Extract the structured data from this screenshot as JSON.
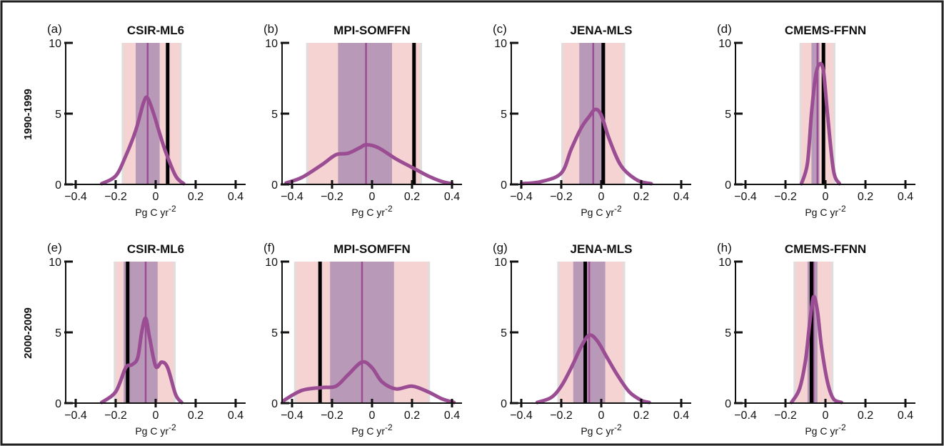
{
  "row_labels": [
    "1990-1999",
    "2000-2009"
  ],
  "colors": {
    "curve": "#9b4d93",
    "mean_line": "#9b4d93",
    "inner_band": "#b999b8",
    "outer_band_pink": "#f5d3d3",
    "outer_band_grey": "#dedede",
    "obs_line": "#000000"
  },
  "chart_data": [
    {
      "type": "area",
      "letter": "(a)",
      "title": "CSIR-ML6",
      "xlabel": "Pg C yr",
      "xlabel_sup": "-2",
      "xlim": [
        -0.45,
        0.45
      ],
      "ylim": [
        0,
        10
      ],
      "xticks": [
        "-0.4",
        "-0.2",
        "0",
        "0.2",
        "0.4"
      ],
      "xtick_values": [
        -0.4,
        -0.2,
        0,
        0.2,
        0.4
      ],
      "yticks": [
        "0",
        "5",
        "10"
      ],
      "ytick_values": [
        0,
        5,
        10
      ],
      "outer_band": [
        -0.17,
        0.13
      ],
      "pink_band": [
        -0.16,
        0.12
      ],
      "inner_band": [
        -0.1,
        0.02
      ],
      "mean": -0.04,
      "observed": 0.06,
      "density": {
        "x": [
          -0.27,
          -0.2,
          -0.15,
          -0.1,
          -0.06,
          -0.04,
          -0.01,
          0.02,
          0.05,
          0.1,
          0.14
        ],
        "y": [
          0.05,
          0.6,
          2.0,
          3.8,
          5.8,
          6.1,
          5.0,
          3.6,
          2.3,
          0.6,
          0.05
        ]
      }
    },
    {
      "type": "area",
      "letter": "(b)",
      "title": "MPI-SOMFFN",
      "xlabel": "Pg C yr",
      "xlabel_sup": "-2",
      "xlim": [
        -0.45,
        0.45
      ],
      "ylim": [
        0,
        10
      ],
      "xticks": [
        "-0.4",
        "-0.2",
        "0",
        "0.2",
        "0.4"
      ],
      "xtick_values": [
        -0.4,
        -0.2,
        0,
        0.2,
        0.4
      ],
      "yticks": [
        "0",
        "5",
        "10"
      ],
      "ytick_values": [
        0,
        5,
        10
      ],
      "outer_band": [
        -0.33,
        0.25
      ],
      "pink_band": [
        -0.32,
        0.24
      ],
      "inner_band": [
        -0.17,
        0.1
      ],
      "mean": -0.03,
      "observed": 0.21,
      "density": {
        "x": [
          -0.43,
          -0.35,
          -0.25,
          -0.18,
          -0.12,
          -0.06,
          -0.03,
          0.03,
          0.12,
          0.2,
          0.28,
          0.35,
          0.4
        ],
        "y": [
          0.1,
          0.5,
          1.4,
          2.1,
          2.2,
          2.6,
          2.8,
          2.6,
          1.8,
          1.2,
          0.6,
          0.2,
          0.05
        ]
      }
    },
    {
      "type": "area",
      "letter": "(c)",
      "title": "JENA-MLS",
      "xlabel": "Pg C yr",
      "xlabel_sup": "-2",
      "xlim": [
        -0.45,
        0.45
      ],
      "ylim": [
        0,
        10
      ],
      "xticks": [
        "-0.4",
        "-0.2",
        "0",
        "0.2",
        "0.4"
      ],
      "xtick_values": [
        -0.4,
        -0.2,
        0,
        0.2,
        0.4
      ],
      "yticks": [
        "0",
        "5",
        "10"
      ],
      "ytick_values": [
        0,
        5,
        10
      ],
      "outer_band": [
        -0.2,
        0.12
      ],
      "pink_band": [
        -0.19,
        0.11
      ],
      "inner_band": [
        -0.11,
        0.02
      ],
      "mean": -0.04,
      "observed": 0.01,
      "density": {
        "x": [
          -0.4,
          -0.3,
          -0.2,
          -0.15,
          -0.1,
          -0.06,
          -0.03,
          0.0,
          0.04,
          0.1,
          0.18,
          0.25
        ],
        "y": [
          0.05,
          0.2,
          0.8,
          2.5,
          4.0,
          4.8,
          5.3,
          4.9,
          3.2,
          1.3,
          0.3,
          0.05
        ]
      }
    },
    {
      "type": "area",
      "letter": "(d)",
      "title": "CMEMS-FFNN",
      "xlabel": "Pg C yr",
      "xlabel_sup": "-2",
      "xlim": [
        -0.45,
        0.45
      ],
      "ylim": [
        0,
        10
      ],
      "xticks": [
        "-0.4",
        "-0.2",
        "0",
        "0.2",
        "0.4"
      ],
      "xtick_values": [
        -0.4,
        -0.2,
        0,
        0.2,
        0.4
      ],
      "yticks": [
        "0",
        "5",
        "10"
      ],
      "ytick_values": [
        0,
        5,
        10
      ],
      "outer_band": [
        -0.13,
        0.05
      ],
      "pink_band": [
        -0.12,
        0.04
      ],
      "inner_band": [
        -0.07,
        -0.03
      ],
      "mean": -0.04,
      "observed": -0.01,
      "density": {
        "x": [
          -0.12,
          -0.09,
          -0.07,
          -0.05,
          -0.03,
          -0.01,
          0.01,
          0.04,
          0.07
        ],
        "y": [
          0.05,
          1.5,
          5.0,
          7.6,
          8.5,
          8.0,
          5.0,
          1.0,
          0.05
        ]
      }
    },
    {
      "type": "area",
      "letter": "(e)",
      "title": "CSIR-ML6",
      "xlabel": "Pg C yr",
      "xlabel_sup": "-2",
      "xlim": [
        -0.45,
        0.45
      ],
      "ylim": [
        0,
        10
      ],
      "xticks": [
        "-0.4",
        "-0.2",
        "0",
        "0.2",
        "0.4"
      ],
      "xtick_values": [
        -0.4,
        -0.2,
        0,
        0.2,
        0.4
      ],
      "yticks": [
        "0",
        "5",
        "10"
      ],
      "ytick_values": [
        0,
        5,
        10
      ],
      "outer_band": [
        -0.21,
        0.1
      ],
      "pink_band": [
        -0.2,
        0.09
      ],
      "inner_band": [
        -0.16,
        0.01
      ],
      "mean": -0.05,
      "observed": -0.14,
      "density": {
        "x": [
          -0.27,
          -0.2,
          -0.15,
          -0.12,
          -0.09,
          -0.07,
          -0.05,
          -0.03,
          0.0,
          0.03,
          0.06,
          0.1,
          0.13
        ],
        "y": [
          0.05,
          0.8,
          2.5,
          2.7,
          3.2,
          5.0,
          6.0,
          4.6,
          2.6,
          2.9,
          2.5,
          0.6,
          0.05
        ]
      }
    },
    {
      "type": "area",
      "letter": "(f)",
      "title": "MPI-SOMFFN",
      "xlabel": "Pg C yr",
      "xlabel_sup": "-2",
      "xlim": [
        -0.45,
        0.45
      ],
      "ylim": [
        0,
        10
      ],
      "xticks": [
        "-0.4",
        "-0.2",
        "0",
        "0.2",
        "0.4"
      ],
      "xtick_values": [
        -0.4,
        -0.2,
        0,
        0.2,
        0.4
      ],
      "yticks": [
        "0",
        "5",
        "10"
      ],
      "ytick_values": [
        0,
        5,
        10
      ],
      "outer_band": [
        -0.39,
        0.29
      ],
      "pink_band": [
        -0.38,
        0.28
      ],
      "inner_band": [
        -0.21,
        0.11
      ],
      "mean": -0.05,
      "observed": -0.26,
      "density": {
        "x": [
          -0.44,
          -0.35,
          -0.25,
          -0.18,
          -0.12,
          -0.05,
          0.0,
          0.05,
          0.12,
          0.2,
          0.28,
          0.35,
          0.41
        ],
        "y": [
          0.2,
          0.9,
          1.1,
          1.2,
          2.0,
          2.9,
          2.5,
          1.5,
          1.0,
          1.2,
          0.8,
          0.3,
          0.05
        ]
      }
    },
    {
      "type": "area",
      "letter": "(g)",
      "title": "JENA-MLS",
      "xlabel": "Pg C yr",
      "xlabel_sup": "-2",
      "xlim": [
        -0.45,
        0.45
      ],
      "ylim": [
        0,
        10
      ],
      "xticks": [
        "-0.4",
        "-0.2",
        "0",
        "0.2",
        "0.4"
      ],
      "xtick_values": [
        -0.4,
        -0.2,
        0,
        0.2,
        0.4
      ],
      "yticks": [
        "0",
        "5",
        "10"
      ],
      "ytick_values": [
        0,
        5,
        10
      ],
      "outer_band": [
        -0.22,
        0.12
      ],
      "pink_band": [
        -0.21,
        0.11
      ],
      "inner_band": [
        -0.14,
        0.02
      ],
      "mean": -0.06,
      "observed": -0.08,
      "density": {
        "x": [
          -0.32,
          -0.25,
          -0.2,
          -0.15,
          -0.1,
          -0.06,
          -0.02,
          0.03,
          0.08,
          0.14,
          0.2,
          0.24
        ],
        "y": [
          0.05,
          0.4,
          1.2,
          2.5,
          4.0,
          4.8,
          4.4,
          3.2,
          2.0,
          0.8,
          0.2,
          0.05
        ]
      }
    },
    {
      "type": "area",
      "letter": "(h)",
      "title": "CMEMS-FFNN",
      "xlabel": "Pg C yr",
      "xlabel_sup": "-2",
      "xlim": [
        -0.45,
        0.45
      ],
      "ylim": [
        0,
        10
      ],
      "xticks": [
        "-0.4",
        "-0.2",
        "0",
        "0.2",
        "0.4"
      ],
      "xtick_values": [
        -0.4,
        -0.2,
        0,
        0.2,
        0.4
      ],
      "yticks": [
        "0",
        "5",
        "10"
      ],
      "ytick_values": [
        0,
        5,
        10
      ],
      "outer_band": [
        -0.16,
        0.04
      ],
      "pink_band": [
        -0.15,
        0.03
      ],
      "inner_band": [
        -0.09,
        -0.04
      ],
      "mean": -0.06,
      "observed": -0.07,
      "density": {
        "x": [
          -0.17,
          -0.13,
          -0.1,
          -0.08,
          -0.06,
          -0.04,
          -0.02,
          0.01,
          0.04,
          0.08
        ],
        "y": [
          0.05,
          1.0,
          3.0,
          5.5,
          7.5,
          6.5,
          4.0,
          1.5,
          0.3,
          0.05
        ]
      }
    }
  ]
}
